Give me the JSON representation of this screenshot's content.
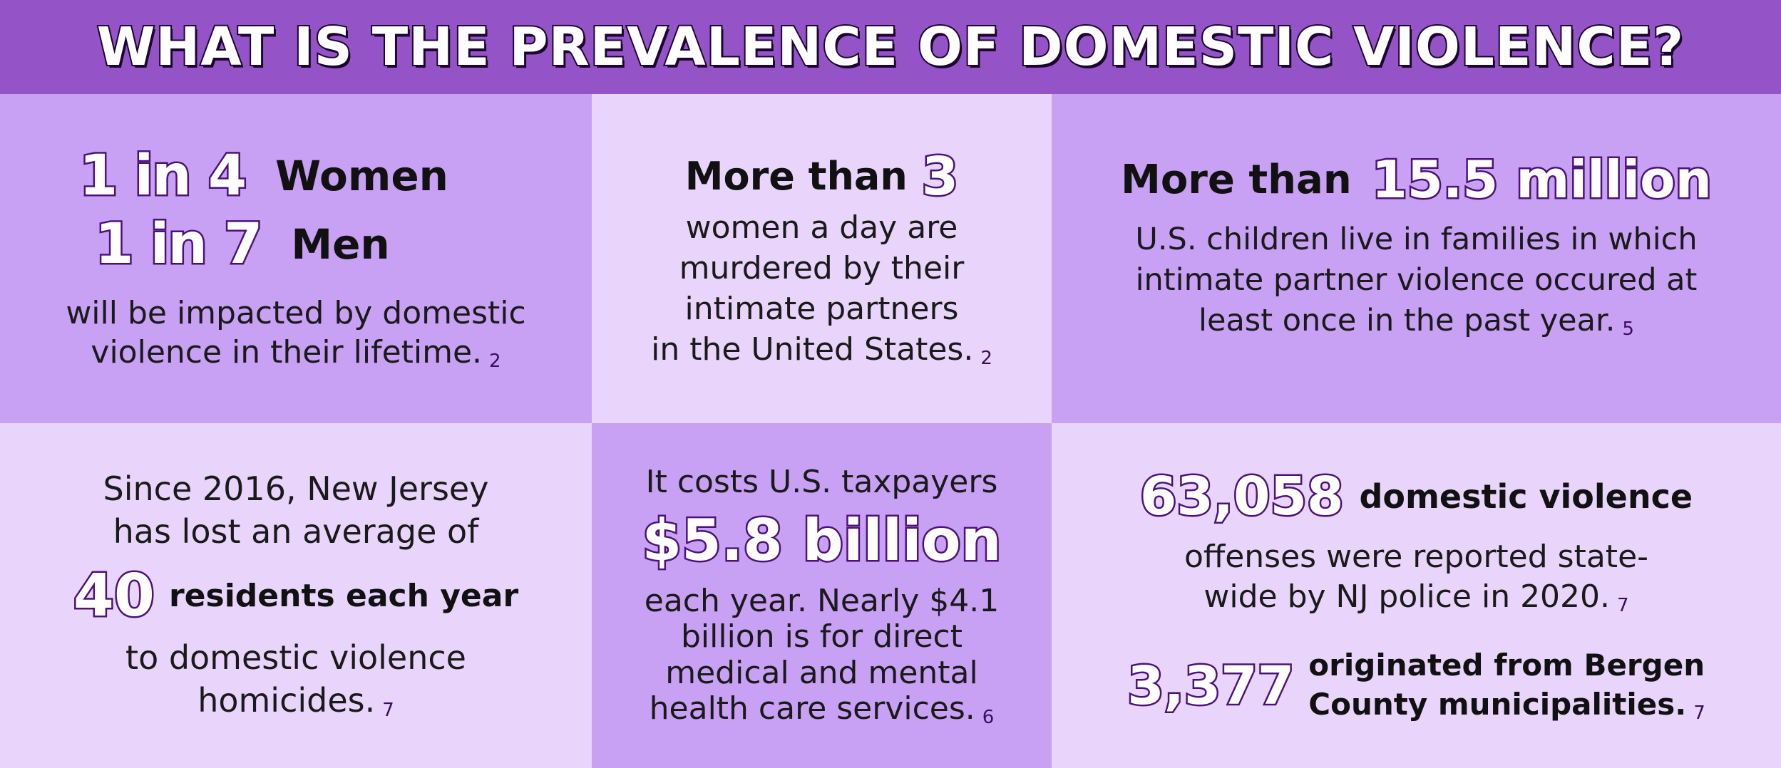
{
  "title": "WHAT IS THE PREVALENCE OF DOMESTIC VIOLENCE?",
  "colors": {
    "banner": "#9553c8",
    "panel_dark": "#c8a0f4",
    "panel_light": "#e9d4fb",
    "number_outline": "#4c1278"
  },
  "panel1": {
    "stat1_num": "1 in 4",
    "stat1_label": "Women",
    "stat2_num": "1 in 7",
    "stat2_label": "Men",
    "text_line1": "will be impacted by domestic",
    "text_line2": "violence in their lifetime.",
    "ref": "2"
  },
  "panel2": {
    "lead": "More than",
    "num": "3",
    "line1": "women a day are",
    "line2": "murdered by their",
    "line3": "intimate partners",
    "line4": "in the United States.",
    "ref": "2"
  },
  "panel3": {
    "lead": "More than",
    "num": "15.5 million",
    "line1": "U.S. children live in families in which",
    "line2": "intimate partner violence occured at",
    "line3": "least once in the past year.",
    "ref": "5"
  },
  "panel4": {
    "line1": "Since 2016,  New Jersey",
    "line2": "has lost an average of",
    "num": "40",
    "num_label": "residents each year",
    "line3": "to domestic violence",
    "line4": "homicides.",
    "ref": "7"
  },
  "panel5": {
    "lead": "It costs U.S. taxpayers",
    "num": "$5.8 billion",
    "line1": "each year. Nearly $4.1",
    "line2": "billion is for direct",
    "line3": "medical and mental",
    "line4": "health care services.",
    "ref": "6"
  },
  "panel6": {
    "num1": "63,058",
    "num1_label": "domestic violence",
    "line1": "offenses were reported state-",
    "line2": "wide by NJ police in 2020.",
    "ref1": "7",
    "num2": "3,377",
    "num2_label_line1": "originated from Bergen",
    "num2_label_line2": "County municipalities.",
    "ref2": "7"
  }
}
